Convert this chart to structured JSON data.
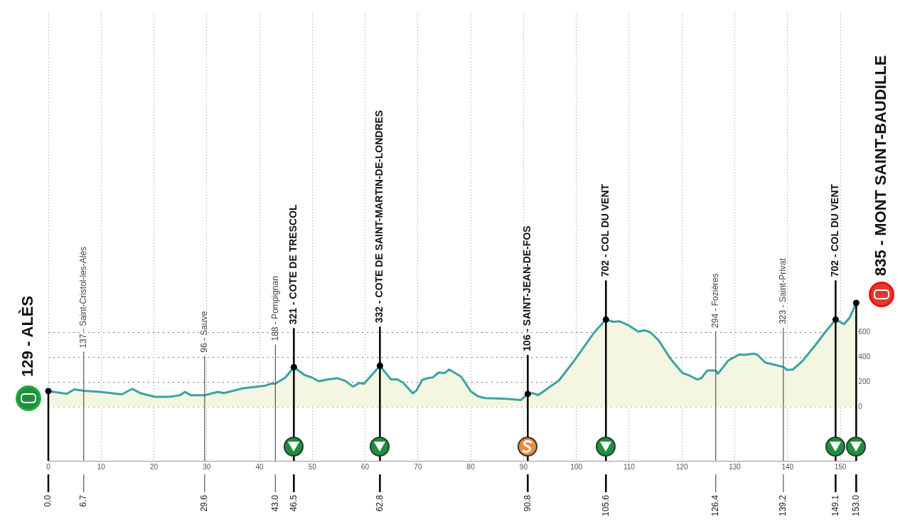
{
  "chart_data": {
    "type": "area",
    "x": [
      0,
      3.5,
      4.9,
      6.7,
      9.8,
      13.9,
      15.9,
      17.5,
      20.2,
      22.9,
      24.9,
      25.9,
      27.0,
      29.6,
      32.1,
      33.2,
      35.0,
      36.8,
      39.5,
      41.1,
      42.2,
      43.0,
      44.9,
      46.5,
      47.4,
      48.5,
      49.9,
      51.2,
      53.0,
      54.8,
      56.2,
      57.7,
      58.9,
      59.8,
      62.8,
      64.9,
      66.1,
      67.2,
      69.0,
      69.7,
      70.8,
      71.9,
      72.8,
      73.9,
      75.1,
      75.9,
      78.2,
      80.0,
      81.4,
      82.7,
      86.8,
      89.5,
      90.8,
      91.7,
      92.8,
      96.7,
      99.8,
      103.4,
      105.6,
      107.0,
      108.2,
      109.9,
      111.7,
      112.9,
      114.0,
      115.6,
      117.8,
      120.1,
      121.4,
      122.9,
      123.7,
      124.8,
      126.4,
      126.8,
      128.8,
      130.9,
      131.7,
      133.6,
      134.3,
      135.8,
      138.1,
      139.2,
      139.9,
      141.0,
      142.8,
      145.3,
      147.1,
      149.1,
      150.7,
      151.8,
      153.0
    ],
    "series": [
      {
        "color": "#3aa3a6",
        "values": [
          129,
          107,
          143,
          131,
          123,
          103,
          147,
          111,
          83,
          83,
          95,
          123,
          95,
          96,
          123,
          113,
          131,
          151,
          164,
          173,
          188,
          188,
          238,
          321,
          292,
          258,
          238,
          208,
          222,
          232,
          212,
          165,
          194,
          188,
          332,
          222,
          222,
          197,
          111,
          133,
          218,
          234,
          238,
          278,
          274,
          302,
          244,
          127,
          87,
          73,
          67,
          57,
          106,
          113,
          97,
          214,
          384,
          600,
          702,
          684,
          688,
          656,
          606,
          616,
          600,
          535,
          389,
          274,
          254,
          222,
          234,
          294,
          294,
          268,
          375,
          423,
          419,
          429,
          419,
          358,
          334,
          323,
          298,
          302,
          369,
          499,
          600,
          702,
          666,
          720,
          835
        ]
      }
    ],
    "xlim": [
      0,
      153
    ],
    "xticks": [
      0,
      10,
      20,
      30,
      40,
      50,
      60,
      70,
      80,
      90,
      100,
      110,
      120,
      130,
      140,
      150
    ],
    "ylim": [
      -430,
      3160
    ],
    "yticks": [
      0,
      200,
      400,
      600
    ],
    "grid": true,
    "legend": false,
    "ref_lines": [
      {
        "axis": "x",
        "value": 0,
        "label": "129 - ALÈS",
        "color": "#000000"
      },
      {
        "axis": "x",
        "value": 6.7,
        "label": "137 - Saint-Cristol-les-Alès",
        "color": "#555555"
      },
      {
        "axis": "x",
        "value": 29.6,
        "label": "96 - Sauve",
        "color": "#555555"
      },
      {
        "axis": "x",
        "value": 43.0,
        "label": "188 - Pompignan",
        "color": "#555555"
      },
      {
        "axis": "x",
        "value": 46.5,
        "label": "321 - COTE DE TRESCOL",
        "color": "#000000"
      },
      {
        "axis": "x",
        "value": 62.8,
        "label": "332 - COTE DE SAINT-MARTIN-DE-LONDRES",
        "color": "#000000"
      },
      {
        "axis": "x",
        "value": 90.8,
        "label": "106 - SAINT-JEAN-DE-FOS",
        "color": "#000000"
      },
      {
        "axis": "x",
        "value": 105.6,
        "label": "702 - COL DU VENT",
        "color": "#000000"
      },
      {
        "axis": "x",
        "value": 126.4,
        "label": "294 - Fozières",
        "color": "#555555"
      },
      {
        "axis": "x",
        "value": 139.2,
        "label": "323 - Saint-Privat",
        "color": "#555555"
      },
      {
        "axis": "x",
        "value": 149.1,
        "label": "702 - COL DU VENT",
        "color": "#000000"
      },
      {
        "axis": "x",
        "value": 153.0,
        "label": "835 - MONT SAINT-BAUDILLE",
        "color": "#000000"
      }
    ],
    "x2lim": [
      0,
      153
    ],
    "x2ticks": [
      {
        "value": 0,
        "label": "0.0"
      },
      6.7,
      29.6,
      {
        "value": 43,
        "label": "43.0"
      },
      46.5,
      62.8,
      90.8,
      105.6,
      126.4,
      139.2,
      149.1,
      {
        "value": 153,
        "label": "153.0"
      }
    ]
  }
}
